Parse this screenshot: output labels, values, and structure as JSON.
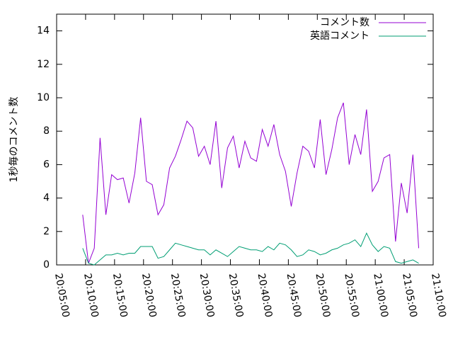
{
  "chart_data": {
    "type": "line",
    "ylabel": "1秒毎のコメント数",
    "x": [
      "20:09:30",
      "20:10:30",
      "20:11:30",
      "20:12:30",
      "20:13:30",
      "20:14:30",
      "20:15:30",
      "20:16:30",
      "20:17:30",
      "20:18:30",
      "20:19:30",
      "20:20:30",
      "20:21:30",
      "20:22:30",
      "20:23:30",
      "20:24:30",
      "20:25:30",
      "20:26:30",
      "20:27:30",
      "20:28:30",
      "20:29:30",
      "20:30:30",
      "20:31:30",
      "20:32:30",
      "20:33:30",
      "20:34:30",
      "20:35:30",
      "20:36:30",
      "20:37:30",
      "20:38:30",
      "20:39:30",
      "20:40:30",
      "20:41:30",
      "20:42:30",
      "20:43:30",
      "20:44:30",
      "20:45:30",
      "20:46:30",
      "20:47:30",
      "20:48:30",
      "20:49:30",
      "20:50:30",
      "20:51:30",
      "20:52:30",
      "20:53:30",
      "20:54:30",
      "20:55:30",
      "20:56:30",
      "20:57:30",
      "20:58:30",
      "20:59:30",
      "21:00:30",
      "21:01:30",
      "21:02:30",
      "21:03:30",
      "21:04:30",
      "21:05:30",
      "21:06:30",
      "21:07:30"
    ],
    "series": [
      {
        "name": "コメント数",
        "color": "#9400d3",
        "values": [
          3.0,
          0.1,
          1.0,
          7.6,
          3.0,
          5.4,
          5.1,
          5.2,
          3.7,
          5.5,
          8.8,
          5.0,
          4.8,
          3.0,
          3.6,
          5.8,
          6.5,
          7.5,
          8.6,
          8.2,
          6.5,
          7.1,
          6.0,
          8.6,
          4.6,
          7.0,
          7.7,
          5.8,
          7.4,
          6.4,
          6.2,
          8.1,
          7.1,
          8.4,
          6.6,
          5.6,
          3.5,
          5.5,
          7.1,
          6.8,
          5.8,
          8.7,
          5.4,
          6.9,
          8.8,
          9.7,
          6.0,
          7.8,
          6.6,
          9.3,
          4.4,
          5.0,
          6.4,
          6.6,
          1.4,
          4.9,
          3.1,
          6.6,
          1.0
        ]
      },
      {
        "name": "英語コメント",
        "color": "#009e73",
        "values": [
          1.0,
          0.1,
          0.0,
          0.3,
          0.6,
          0.6,
          0.7,
          0.6,
          0.7,
          0.7,
          1.1,
          1.1,
          1.1,
          0.4,
          0.5,
          0.9,
          1.3,
          1.2,
          1.1,
          1.0,
          0.9,
          0.9,
          0.6,
          0.9,
          0.7,
          0.5,
          0.8,
          1.1,
          1.0,
          0.9,
          0.9,
          0.8,
          1.1,
          0.9,
          1.3,
          1.2,
          0.9,
          0.5,
          0.6,
          0.9,
          0.8,
          0.6,
          0.7,
          0.9,
          1.0,
          1.2,
          1.3,
          1.5,
          1.1,
          1.9,
          1.2,
          0.8,
          1.1,
          1.0,
          0.2,
          0.1,
          0.2,
          0.3,
          0.1
        ]
      }
    ],
    "xlim": [
      "20:05:00",
      "21:10:00"
    ],
    "xticks": [
      "20:05:00",
      "20:10:00",
      "20:15:00",
      "20:20:00",
      "20:25:00",
      "20:30:00",
      "20:35:00",
      "20:40:00",
      "20:45:00",
      "20:50:00",
      "20:55:00",
      "21:00:00",
      "21:05:00",
      "21:10:00"
    ],
    "ylim": [
      0,
      15
    ],
    "yticks": [
      0,
      2,
      4,
      6,
      8,
      10,
      12,
      14
    ],
    "legend": "top-right"
  }
}
